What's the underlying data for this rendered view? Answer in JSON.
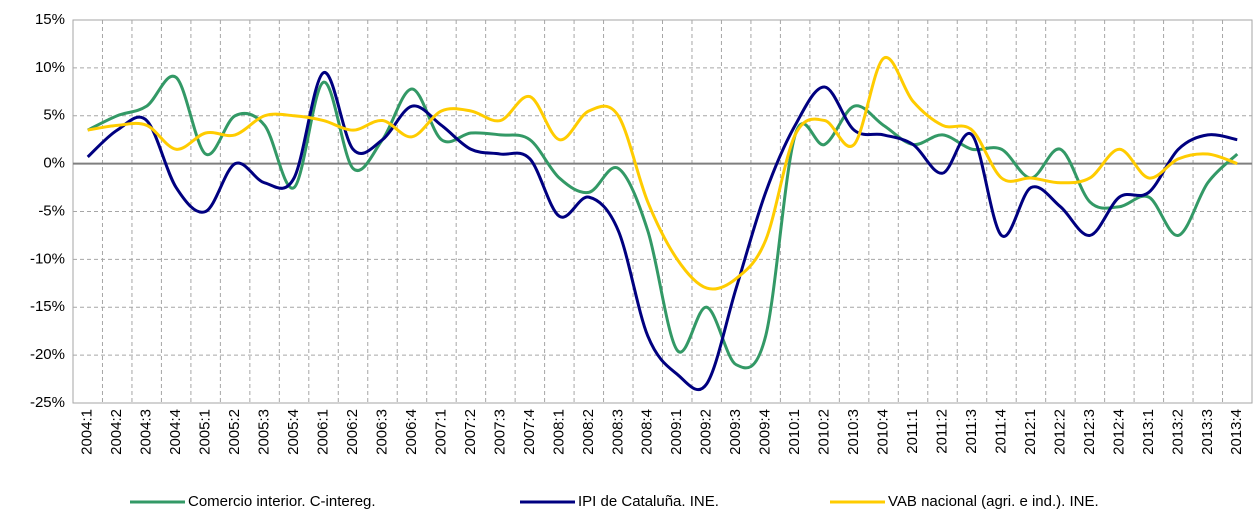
{
  "chart_data": {
    "type": "line",
    "categories": [
      "2004:1",
      "2004:2",
      "2004:3",
      "2004:4",
      "2005:1",
      "2005:2",
      "2005:3",
      "2005:4",
      "2006:1",
      "2006:2",
      "2006:3",
      "2006:4",
      "2007:1",
      "2007:2",
      "2007:3",
      "2007:4",
      "2008:1",
      "2008:2",
      "2008:3",
      "2008:4",
      "2009:1",
      "2009:2",
      "2009:3",
      "2009:4",
      "2010:1",
      "2010:2",
      "2010:3",
      "2010:4",
      "2011:1",
      "2011:2",
      "2011:3",
      "2011:4",
      "2012:1",
      "2012:2",
      "2012:3",
      "2012:4",
      "2013:1",
      "2013:2",
      "2013:3",
      "2013:4"
    ],
    "series": [
      {
        "name": "Comercio interior. C-intereg.",
        "color": "#339966",
        "values": [
          3.5,
          5,
          6,
          9,
          1,
          5,
          4,
          -2.5,
          8.5,
          -0.5,
          2.5,
          7.8,
          2.5,
          3.2,
          3,
          2.5,
          -1.5,
          -3,
          -0.5,
          -7,
          -19.5,
          -15,
          -21,
          -18,
          3,
          2,
          6,
          4,
          2,
          3,
          1.5,
          1.5,
          -1.5,
          1.5,
          -4,
          -4.5,
          -3.5,
          -7.5,
          -2,
          1
        ]
      },
      {
        "name": "IPI de Cataluña. INE.",
        "color": "#000080",
        "values": [
          0.7,
          3.5,
          4.5,
          -2.5,
          -5,
          0,
          -2,
          -1.5,
          9.5,
          1.5,
          2.5,
          6,
          4,
          1.5,
          1,
          0.5,
          -5.5,
          -3.5,
          -7,
          -18,
          -22,
          -23,
          -13,
          -3,
          4,
          8,
          3.5,
          3,
          2,
          -1,
          3,
          -7.5,
          -2.5,
          -4.5,
          -7.5,
          -3.5,
          -3,
          1.5,
          3,
          2.5
        ]
      },
      {
        "name": "VAB nacional (agri. e ind.). INE.",
        "color": "#ffcc00",
        "values": [
          3.5,
          4,
          4,
          1.5,
          3.2,
          3,
          5,
          5,
          4.5,
          3.5,
          4.5,
          2.8,
          5.5,
          5.5,
          4.5,
          7,
          2.5,
          5.5,
          5,
          -4,
          -10,
          -13,
          -12,
          -8,
          3,
          4.5,
          2,
          11,
          6.5,
          4,
          3.5,
          -1.5,
          -1.5,
          -2,
          -1.5,
          1.5,
          -1.5,
          0.5,
          1,
          0
        ]
      }
    ],
    "ylim": [
      -25,
      15
    ],
    "yticks": [
      {
        "value": -25,
        "label": "-25%"
      },
      {
        "value": -20,
        "label": "-20%"
      },
      {
        "value": -15,
        "label": "-15%"
      },
      {
        "value": -10,
        "label": "-10%"
      },
      {
        "value": -5,
        "label": "-5%"
      },
      {
        "value": 0,
        "label": "0%"
      },
      {
        "value": 5,
        "label": "5%"
      },
      {
        "value": 10,
        "label": "10%"
      },
      {
        "value": 15,
        "label": "15%"
      }
    ],
    "grid": true
  }
}
